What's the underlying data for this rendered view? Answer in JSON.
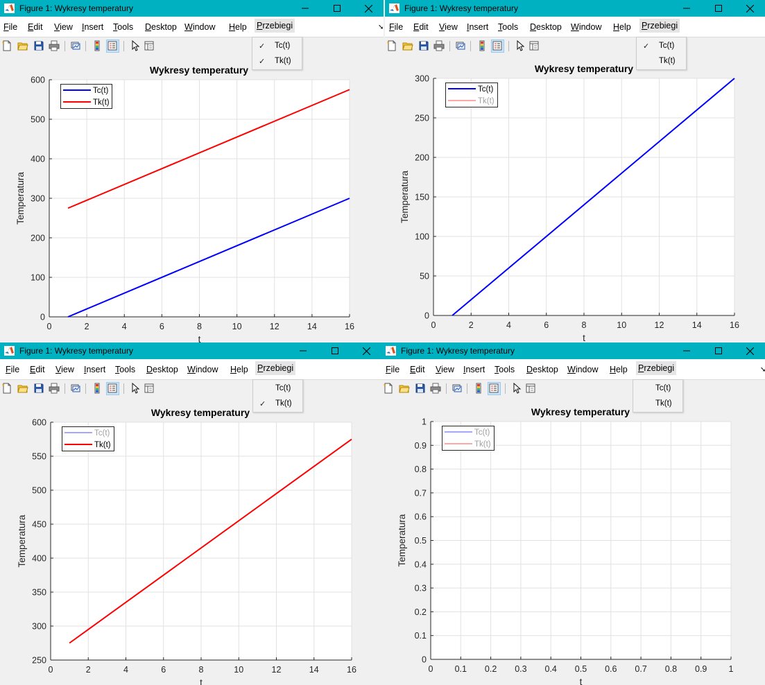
{
  "colors": {
    "title_bar": "#00b2c1",
    "tc_line": "#0000ff",
    "tk_line": "#ff0000",
    "tc_faded": "#a6a6ff",
    "tk_faded": "#ffa6a6"
  },
  "windows": [
    {
      "title": "Figure 1: Wykresy temperatury",
      "menu": [
        "File",
        "Edit",
        "View",
        "Insert",
        "Tools",
        "Desktop",
        "Window",
        "Help",
        "Przebiegi"
      ],
      "dropdown": [
        {
          "label": "Tc(t)",
          "checked": true
        },
        {
          "label": "Tk(t)",
          "checked": true
        }
      ],
      "axes_title": "Wykresy temperatury",
      "ylabel": "Temperatura",
      "xlabel": "t",
      "legend": [
        {
          "label": "Tc(t)",
          "enabled": true
        },
        {
          "label": "Tk(t)",
          "enabled": true
        }
      ]
    },
    {
      "title": "Figure 1: Wykresy temperatury",
      "menu": [
        "File",
        "Edit",
        "View",
        "Insert",
        "Tools",
        "Desktop",
        "Window",
        "Help",
        "Przebiegi"
      ],
      "dropdown": [
        {
          "label": "Tc(t)",
          "checked": true
        },
        {
          "label": "Tk(t)",
          "checked": false
        }
      ],
      "axes_title": "Wykresy temperatury",
      "ylabel": "Temperatura",
      "xlabel": "t",
      "legend": [
        {
          "label": "Tc(t)",
          "enabled": true
        },
        {
          "label": "Tk(t)",
          "enabled": false
        }
      ]
    },
    {
      "title": "Figure 1: Wykresy temperatury",
      "menu": [
        "File",
        "Edit",
        "View",
        "Insert",
        "Tools",
        "Desktop",
        "Window",
        "Help",
        "Przebiegi"
      ],
      "dropdown": [
        {
          "label": "Tc(t)",
          "checked": false
        },
        {
          "label": "Tk(t)",
          "checked": true
        }
      ],
      "axes_title": "Wykresy temperatury",
      "ylabel": "Temperatura",
      "xlabel": "t",
      "legend": [
        {
          "label": "Tc(t)",
          "enabled": false
        },
        {
          "label": "Tk(t)",
          "enabled": true
        }
      ]
    },
    {
      "title": "Figure 1: Wykresy temperatury",
      "menu": [
        "File",
        "Edit",
        "View",
        "Insert",
        "Tools",
        "Desktop",
        "Window",
        "Help",
        "Przebiegi"
      ],
      "dropdown": [
        {
          "label": "Tc(t)",
          "checked": false
        },
        {
          "label": "Tk(t)",
          "checked": false
        }
      ],
      "axes_title": "Wykresy temperatury",
      "ylabel": "Temperatura",
      "xlabel": "t",
      "legend": [
        {
          "label": "Tc(t)",
          "enabled": false
        },
        {
          "label": "Tk(t)",
          "enabled": false
        }
      ]
    }
  ],
  "chart_data": [
    {
      "type": "line",
      "title": "Wykresy temperatury",
      "xlabel": "t",
      "ylabel": "Temperatura",
      "xlim": [
        0,
        16
      ],
      "ylim": [
        0,
        600
      ],
      "xticks": [
        0,
        2,
        4,
        6,
        8,
        10,
        12,
        14,
        16
      ],
      "yticks": [
        0,
        100,
        200,
        300,
        400,
        500,
        600
      ],
      "grid": true,
      "legend_location": "top-left",
      "series": [
        {
          "name": "Tc(t)",
          "color": "#0000ff",
          "x": [
            1,
            16
          ],
          "y": [
            0,
            300
          ]
        },
        {
          "name": "Tk(t)",
          "color": "#ff0000",
          "x": [
            1,
            16
          ],
          "y": [
            275,
            575
          ]
        }
      ]
    },
    {
      "type": "line",
      "title": "Wykresy temperatury",
      "xlabel": "t",
      "ylabel": "Temperatura",
      "xlim": [
        0,
        16
      ],
      "ylim": [
        0,
        300
      ],
      "xticks": [
        0,
        2,
        4,
        6,
        8,
        10,
        12,
        14,
        16
      ],
      "yticks": [
        0,
        50,
        100,
        150,
        200,
        250,
        300
      ],
      "grid": true,
      "legend_location": "top-left",
      "series": [
        {
          "name": "Tc(t)",
          "color": "#0000ff",
          "x": [
            1,
            16
          ],
          "y": [
            0,
            300
          ]
        }
      ]
    },
    {
      "type": "line",
      "title": "Wykresy temperatury",
      "xlabel": "t",
      "ylabel": "Temperatura",
      "xlim": [
        0,
        16
      ],
      "ylim": [
        250,
        600
      ],
      "xticks": [
        0,
        2,
        4,
        6,
        8,
        10,
        12,
        14,
        16
      ],
      "yticks": [
        250,
        300,
        350,
        400,
        450,
        500,
        550,
        600
      ],
      "grid": true,
      "legend_location": "top-left",
      "series": [
        {
          "name": "Tk(t)",
          "color": "#ff0000",
          "x": [
            1,
            16
          ],
          "y": [
            275,
            575
          ]
        }
      ]
    },
    {
      "type": "line",
      "title": "Wykresy temperatury",
      "xlabel": "t",
      "ylabel": "Temperatura",
      "xlim": [
        0,
        1
      ],
      "ylim": [
        0,
        1
      ],
      "xticks": [
        0,
        0.1,
        0.2,
        0.3,
        0.4,
        0.5,
        0.6,
        0.7,
        0.8,
        0.9,
        1
      ],
      "yticks": [
        0,
        0.1,
        0.2,
        0.3,
        0.4,
        0.5,
        0.6,
        0.7,
        0.8,
        0.9,
        1
      ],
      "grid": true,
      "legend_location": "top-left",
      "series": []
    }
  ]
}
